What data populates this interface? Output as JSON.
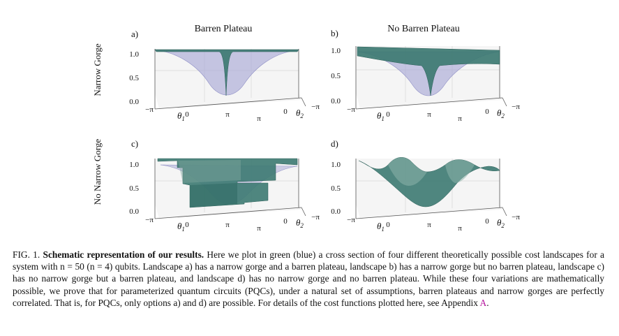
{
  "figure": {
    "col_titles": [
      "Barren Plateau",
      "No Barren Plateau"
    ],
    "row_titles": [
      "Narrow Gorge",
      "No Narrow Gorge"
    ],
    "panels": [
      {
        "label": "a)",
        "z_ticks": [
          "1.0",
          "0.5",
          "0.0"
        ],
        "theta1_ticks": [
          "−π",
          "0",
          "π"
        ],
        "theta2_ticks": [
          "π",
          "0",
          "−π"
        ],
        "theta1_label": "θ1",
        "theta2_label": "θ2",
        "landscape": "narrow gorge, barren plateau"
      },
      {
        "label": "b)",
        "z_ticks": [
          "1.0",
          "0.5",
          "0.0"
        ],
        "theta1_ticks": [
          "−π",
          "0",
          "π"
        ],
        "theta2_ticks": [
          "π",
          "0",
          "−π"
        ],
        "theta1_label": "θ1",
        "theta2_label": "θ2",
        "landscape": "narrow gorge, no barren plateau"
      },
      {
        "label": "c)",
        "z_ticks": [
          "1.0",
          "0.5",
          "0.0"
        ],
        "theta1_ticks": [
          "−π",
          "0",
          "π"
        ],
        "theta2_ticks": [
          "π",
          "0",
          "−π"
        ],
        "theta1_label": "θ1",
        "theta2_label": "θ2",
        "landscape": "no narrow gorge, barren plateau"
      },
      {
        "label": "d)",
        "z_ticks": [
          "1.0",
          "0.5",
          "0.0"
        ],
        "theta1_ticks": [
          "−π",
          "0",
          "π"
        ],
        "theta2_ticks": [
          "π",
          "0",
          "−π"
        ],
        "theta1_label": "θ1",
        "theta2_label": "θ2",
        "landscape": "no narrow gorge, no barren plateau"
      }
    ],
    "colors": {
      "green": "#3d7a72",
      "blue": "#a9a9d6"
    }
  },
  "caption": {
    "prefix": "FIG. 1.",
    "bold": "Schematic representation of our results.",
    "body": "Here we plot in green (blue) a cross section of four different theoretically possible cost landscapes for a system with n = 50 (n = 4) qubits. Landscape a) has a narrow gorge and a barren plateau, landscape b) has a narrow gorge but no barren plateau, landscape c) has no narrow gorge but a barren plateau, and landscape d) has no narrow gorge and no barren plateau. While these four variations are mathematically possible, we prove that for parameterized quantum circuits (PQCs), under a natural set of assumptions, barren plateaus and narrow gorges are perfectly correlated. That is, for PQCs, only options a) and d) are possible. For details of the cost functions plotted here, see Appendix",
    "link": "A",
    "end": "."
  }
}
